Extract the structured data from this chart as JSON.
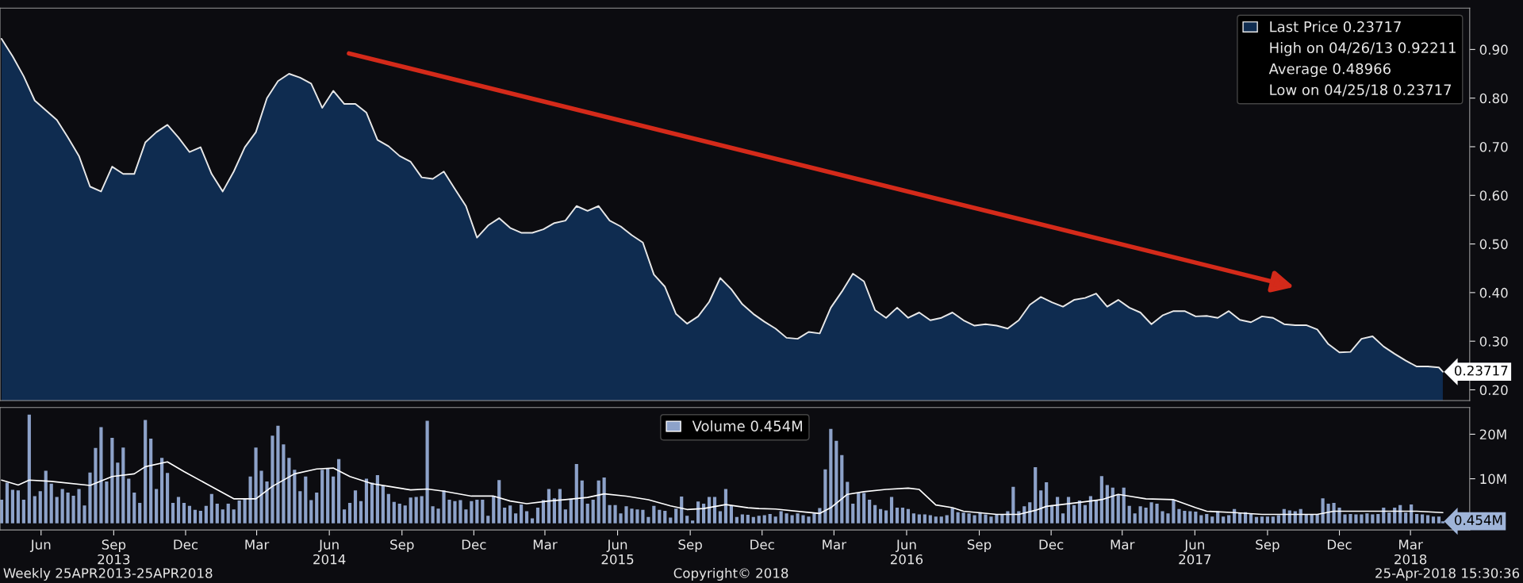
{
  "chart_data": [
    {
      "type": "area",
      "tick_labels": "y",
      "legend": "top right",
      "xlim": [
        "2013-04-24",
        "2018-05-29"
      ],
      "ylim": [
        0.178,
        0.985
      ],
      "yticks": [
        {
          "value": 0.2,
          "label": "0.20"
        },
        {
          "value": 0.3,
          "label": "0.30"
        },
        {
          "value": 0.4,
          "label": "0.40"
        },
        {
          "value": 0.5,
          "label": "0.50"
        },
        {
          "value": 0.6,
          "label": "0.60"
        },
        {
          "value": 0.7,
          "label": "0.70"
        },
        {
          "value": 0.8,
          "label": "0.80"
        },
        {
          "value": 0.9,
          "label": "0.90"
        }
      ],
      "x": [
        "2013-04-26",
        "2013-05-10",
        "2013-05-24",
        "2013-06-07",
        "2013-06-21",
        "2013-07-05",
        "2013-07-19",
        "2013-08-02",
        "2013-08-16",
        "2013-08-30",
        "2013-09-13",
        "2013-09-27",
        "2013-10-11",
        "2013-10-25",
        "2013-11-08",
        "2013-11-22",
        "2013-12-06",
        "2013-12-20",
        "2014-01-03",
        "2014-01-17",
        "2014-01-31",
        "2014-02-14",
        "2014-02-28",
        "2014-03-14",
        "2014-03-28",
        "2014-04-11",
        "2014-04-25",
        "2014-05-09",
        "2014-05-23",
        "2014-06-06",
        "2014-06-20",
        "2014-07-04",
        "2014-07-18",
        "2014-08-01",
        "2014-08-15",
        "2014-08-29",
        "2014-09-12",
        "2014-09-26",
        "2014-10-10",
        "2014-10-24",
        "2014-11-07",
        "2014-11-21",
        "2014-12-05",
        "2014-12-19",
        "2015-01-02",
        "2015-01-16",
        "2015-01-30",
        "2015-02-13",
        "2015-02-27",
        "2015-03-13",
        "2015-03-27",
        "2015-04-10",
        "2015-04-24",
        "2015-05-08",
        "2015-05-22",
        "2015-06-05",
        "2015-06-19",
        "2015-07-03",
        "2015-07-17",
        "2015-07-31",
        "2015-08-14",
        "2015-08-28",
        "2015-09-11",
        "2015-09-25",
        "2015-10-09",
        "2015-10-23",
        "2015-11-06",
        "2015-11-20",
        "2015-12-04",
        "2015-12-18",
        "2016-01-01",
        "2016-01-15",
        "2016-01-29",
        "2016-02-12",
        "2016-02-26",
        "2016-03-11",
        "2016-03-25",
        "2016-04-08",
        "2016-04-22",
        "2016-05-06",
        "2016-05-20",
        "2016-06-03",
        "2016-06-17",
        "2016-07-01",
        "2016-07-15",
        "2016-07-29",
        "2016-08-12",
        "2016-08-26",
        "2016-09-09",
        "2016-09-23",
        "2016-10-07",
        "2016-10-21",
        "2016-11-04",
        "2016-11-18",
        "2016-12-02",
        "2016-12-16",
        "2016-12-30",
        "2017-01-13",
        "2017-01-27",
        "2017-02-10",
        "2017-02-24",
        "2017-03-10",
        "2017-03-24",
        "2017-04-07",
        "2017-04-21",
        "2017-05-05",
        "2017-05-19",
        "2017-06-02",
        "2017-06-16",
        "2017-06-30",
        "2017-07-14",
        "2017-07-28",
        "2017-08-11",
        "2017-08-25",
        "2017-09-08",
        "2017-09-22",
        "2017-10-06",
        "2017-10-20",
        "2017-11-03",
        "2017-11-17",
        "2017-12-01",
        "2017-12-15",
        "2017-12-29",
        "2018-01-12",
        "2018-01-26",
        "2018-02-09",
        "2018-02-23",
        "2018-03-09",
        "2018-03-23",
        "2018-04-06",
        "2018-04-20",
        "2018-04-25"
      ],
      "series": [
        {
          "name": "Last Price 0.23717",
          "color": "#0f2c50",
          "values": [
            0.922,
            0.886,
            0.845,
            0.795,
            0.775,
            0.755,
            0.719,
            0.681,
            0.618,
            0.608,
            0.659,
            0.644,
            0.644,
            0.709,
            0.73,
            0.745,
            0.719,
            0.689,
            0.699,
            0.644,
            0.608,
            0.649,
            0.699,
            0.73,
            0.8,
            0.835,
            0.85,
            0.842,
            0.83,
            0.78,
            0.815,
            0.788,
            0.788,
            0.77,
            0.714,
            0.701,
            0.681,
            0.669,
            0.637,
            0.634,
            0.649,
            0.613,
            0.578,
            0.513,
            0.538,
            0.553,
            0.533,
            0.523,
            0.523,
            0.53,
            0.543,
            0.548,
            0.578,
            0.568,
            0.578,
            0.548,
            0.536,
            0.518,
            0.503,
            0.437,
            0.412,
            0.356,
            0.336,
            0.351,
            0.381,
            0.43,
            0.407,
            0.376,
            0.356,
            0.34,
            0.326,
            0.307,
            0.305,
            0.319,
            0.316,
            0.369,
            0.402,
            0.439,
            0.423,
            0.364,
            0.348,
            0.369,
            0.348,
            0.359,
            0.343,
            0.348,
            0.359,
            0.343,
            0.332,
            0.335,
            0.332,
            0.326,
            0.343,
            0.375,
            0.391,
            0.38,
            0.371,
            0.385,
            0.389,
            0.398,
            0.371,
            0.385,
            0.369,
            0.359,
            0.335,
            0.353,
            0.362,
            0.362,
            0.351,
            0.352,
            0.348,
            0.362,
            0.344,
            0.339,
            0.351,
            0.348,
            0.335,
            0.333,
            0.333,
            0.324,
            0.294,
            0.277,
            0.278,
            0.305,
            0.31,
            0.289,
            0.274,
            0.26,
            0.248,
            0.248,
            0.246,
            0.23717
          ]
        }
      ],
      "annotations": [
        "High on 04/26/13 0.92211",
        "Average 0.48966",
        "Low on 04/25/18 0.23717",
        {
          "text": "0.23717",
          "x": "2018-04-25",
          "y": 0.23717
        }
      ]
    },
    {
      "type": "bar",
      "legend": "top",
      "xlim": [
        "2013-04-24",
        "2018-05-29"
      ],
      "ylim": [
        -1.5,
        26
      ],
      "yticks": [
        {
          "value": 10,
          "label": "10M"
        },
        {
          "value": 20,
          "label": "20M"
        }
      ],
      "xticks": [
        {
          "value": "2013-06-15",
          "label": "Jun"
        },
        {
          "value": "2013-09-15",
          "label": "Sep\n2013"
        },
        {
          "value": "2013-12-15",
          "label": "Dec"
        },
        {
          "value": "2014-03-15",
          "label": "Mar"
        },
        {
          "value": "2014-06-15",
          "label": "Jun\n2014"
        },
        {
          "value": "2014-09-15",
          "label": "Sep"
        },
        {
          "value": "2014-12-15",
          "label": "Dec"
        },
        {
          "value": "2015-03-15",
          "label": "Mar"
        },
        {
          "value": "2015-06-15",
          "label": "Jun\n2015"
        },
        {
          "value": "2015-09-15",
          "label": "Sep"
        },
        {
          "value": "2015-12-15",
          "label": "Dec"
        },
        {
          "value": "2016-03-15",
          "label": "Mar"
        },
        {
          "value": "2016-06-15",
          "label": "Jun\n2016"
        },
        {
          "value": "2016-09-15",
          "label": "Sep"
        },
        {
          "value": "2016-12-15",
          "label": "Dec"
        },
        {
          "value": "2017-03-15",
          "label": "Mar"
        },
        {
          "value": "2017-06-15",
          "label": "Jun\n2017"
        },
        {
          "value": "2017-09-15",
          "label": "Sep"
        },
        {
          "value": "2017-12-15",
          "label": "Dec"
        },
        {
          "value": "2018-03-15",
          "label": "Mar\n2018"
        }
      ],
      "x": [
        "2013-04-26",
        "2013-05-03",
        "2013-05-10",
        "2013-05-17",
        "2013-05-24",
        "2013-05-31",
        "2013-06-07",
        "2013-06-14",
        "2013-06-21",
        "2013-06-28",
        "2013-07-05",
        "2013-07-12",
        "2013-07-19",
        "2013-07-26",
        "2013-08-02",
        "2013-08-09",
        "2013-08-16",
        "2013-08-23",
        "2013-08-30",
        "2013-09-06",
        "2013-09-13",
        "2013-09-20",
        "2013-09-27",
        "2013-10-04",
        "2013-10-11",
        "2013-10-18",
        "2013-10-25",
        "2013-11-01",
        "2013-11-08",
        "2013-11-15",
        "2013-11-22",
        "2013-11-29",
        "2013-12-06",
        "2013-12-13",
        "2013-12-20",
        "2013-12-27",
        "2014-01-03",
        "2014-01-10",
        "2014-01-17",
        "2014-01-24",
        "2014-01-31",
        "2014-02-07",
        "2014-02-14",
        "2014-02-21",
        "2014-02-28",
        "2014-03-07",
        "2014-03-14",
        "2014-03-21",
        "2014-03-28",
        "2014-04-04",
        "2014-04-11",
        "2014-04-18",
        "2014-04-25",
        "2014-05-02",
        "2014-05-09",
        "2014-05-16",
        "2014-05-23",
        "2014-05-30",
        "2014-06-06",
        "2014-06-13",
        "2014-06-20",
        "2014-06-27",
        "2014-07-04",
        "2014-07-11",
        "2014-07-18",
        "2014-07-25",
        "2014-08-01",
        "2014-08-08",
        "2014-08-15",
        "2014-08-22",
        "2014-08-29",
        "2014-09-05",
        "2014-09-12",
        "2014-09-19",
        "2014-09-26",
        "2014-10-03",
        "2014-10-10",
        "2014-10-17",
        "2014-10-24",
        "2014-10-31",
        "2014-11-07",
        "2014-11-14",
        "2014-11-21",
        "2014-11-28",
        "2014-12-05",
        "2014-12-12",
        "2014-12-19",
        "2014-12-26",
        "2015-01-02",
        "2015-01-09",
        "2015-01-16",
        "2015-01-23",
        "2015-01-30",
        "2015-02-06",
        "2015-02-13",
        "2015-02-20",
        "2015-02-27",
        "2015-03-06",
        "2015-03-13",
        "2015-03-20",
        "2015-03-27",
        "2015-04-03",
        "2015-04-10",
        "2015-04-17",
        "2015-04-24",
        "2015-05-01",
        "2015-05-08",
        "2015-05-15",
        "2015-05-22",
        "2015-05-29",
        "2015-06-05",
        "2015-06-12",
        "2015-06-19",
        "2015-06-26",
        "2015-07-03",
        "2015-07-10",
        "2015-07-17",
        "2015-07-24",
        "2015-07-31",
        "2015-08-07",
        "2015-08-14",
        "2015-08-21",
        "2015-08-28",
        "2015-09-04",
        "2015-09-11",
        "2015-09-18",
        "2015-09-25",
        "2015-10-02",
        "2015-10-09",
        "2015-10-16",
        "2015-10-23",
        "2015-10-30",
        "2015-11-06",
        "2015-11-13",
        "2015-11-20",
        "2015-11-27",
        "2015-12-04",
        "2015-12-11",
        "2015-12-18",
        "2015-12-25",
        "2016-01-01",
        "2016-01-08",
        "2016-01-15",
        "2016-01-22",
        "2016-01-29",
        "2016-02-05",
        "2016-02-12",
        "2016-02-19",
        "2016-02-26",
        "2016-03-04",
        "2016-03-11",
        "2016-03-18",
        "2016-03-25",
        "2016-04-01",
        "2016-04-08",
        "2016-04-15",
        "2016-04-22",
        "2016-04-29",
        "2016-05-06",
        "2016-05-13",
        "2016-05-20",
        "2016-05-27",
        "2016-06-03",
        "2016-06-10",
        "2016-06-17",
        "2016-06-24",
        "2016-07-01",
        "2016-07-08",
        "2016-07-15",
        "2016-07-22",
        "2016-07-29",
        "2016-08-05",
        "2016-08-12",
        "2016-08-19",
        "2016-08-26",
        "2016-09-02",
        "2016-09-09",
        "2016-09-16",
        "2016-09-23",
        "2016-09-30",
        "2016-10-07",
        "2016-10-14",
        "2016-10-21",
        "2016-10-28",
        "2016-11-04",
        "2016-11-11",
        "2016-11-18",
        "2016-11-25",
        "2016-12-02",
        "2016-12-09",
        "2016-12-16",
        "2016-12-23",
        "2016-12-30",
        "2017-01-06",
        "2017-01-13",
        "2017-01-20",
        "2017-01-27",
        "2017-02-03",
        "2017-02-10",
        "2017-02-17",
        "2017-02-24",
        "2017-03-03",
        "2017-03-10",
        "2017-03-17",
        "2017-03-24",
        "2017-03-31",
        "2017-04-07",
        "2017-04-14",
        "2017-04-21",
        "2017-04-28",
        "2017-05-05",
        "2017-05-12",
        "2017-05-19",
        "2017-05-26",
        "2017-06-02",
        "2017-06-09",
        "2017-06-16",
        "2017-06-23",
        "2017-06-30",
        "2017-07-07",
        "2017-07-14",
        "2017-07-21",
        "2017-07-28",
        "2017-08-04",
        "2017-08-11",
        "2017-08-18",
        "2017-08-25",
        "2017-09-01",
        "2017-09-08",
        "2017-09-15",
        "2017-09-22",
        "2017-09-29",
        "2017-10-06",
        "2017-10-13",
        "2017-10-20",
        "2017-10-27",
        "2017-11-03",
        "2017-11-10",
        "2017-11-17",
        "2017-11-24",
        "2017-12-01",
        "2017-12-08",
        "2017-12-15",
        "2017-12-22",
        "2017-12-29",
        "2018-01-05",
        "2018-01-12",
        "2018-01-19",
        "2018-01-26",
        "2018-02-02",
        "2018-02-09",
        "2018-02-16",
        "2018-02-23",
        "2018-03-02",
        "2018-03-09",
        "2018-03-16",
        "2018-03-23",
        "2018-03-30",
        "2018-04-06",
        "2018-04-13",
        "2018-04-20",
        "2018-04-25"
      ],
      "series": [
        {
          "name": "Volume 0.454M",
          "color": "#8da2c9",
          "values": [
            5.3,
            9.1,
            7.5,
            7.4,
            5.3,
            24.4,
            6.1,
            7.2,
            11.8,
            8.9,
            5.9,
            7.7,
            6.9,
            6.2,
            7.7,
            4.0,
            11.4,
            16.9,
            21.6,
            9.4,
            19.2,
            13.6,
            17.0,
            10.0,
            6.9,
            4.6,
            23.2,
            19.0,
            7.7,
            14.7,
            11.3,
            4.6,
            5.9,
            4.6,
            3.9,
            3.0,
            2.8,
            3.9,
            6.6,
            4.4,
            3.1,
            4.4,
            3.1,
            5.1,
            5.5,
            10.5,
            17.0,
            11.8,
            9.4,
            19.7,
            21.9,
            17.7,
            14.7,
            12.0,
            7.2,
            10.5,
            5.2,
            6.9,
            12.0,
            12.4,
            10.5,
            14.4,
            3.1,
            4.6,
            7.4,
            5.0,
            10.0,
            9.1,
            10.8,
            8.5,
            6.6,
            4.8,
            4.4,
            4.0,
            5.8,
            5.9,
            6.1,
            23.0,
            3.8,
            3.3,
            7.4,
            5.3,
            5.0,
            5.2,
            3.1,
            5.0,
            5.3,
            5.3,
            1.7,
            6.1,
            9.7,
            3.5,
            4.0,
            2.2,
            4.2,
            2.7,
            1.1,
            3.5,
            5.2,
            7.7,
            5.6,
            7.7,
            3.1,
            5.5,
            13.3,
            9.6,
            4.4,
            5.3,
            9.6,
            10.3,
            4.1,
            4.1,
            2.2,
            3.8,
            3.3,
            3.1,
            3.0,
            1.4,
            3.9,
            3.0,
            2.8,
            1.3,
            3.3,
            6.0,
            1.7,
            0.6,
            4.9,
            4.4,
            5.9,
            5.9,
            2.7,
            7.7,
            4.0,
            1.4,
            2.0,
            1.9,
            1.4,
            1.7,
            1.8,
            2.1,
            1.5,
            2.7,
            2.2,
            1.8,
            2.2,
            1.8,
            1.5,
            2.2,
            3.4,
            12.1,
            21.2,
            18.5,
            15.3,
            9.3,
            4.4,
            6.8,
            6.8,
            5.3,
            4.1,
            3.2,
            2.9,
            5.9,
            3.5,
            3.5,
            3.2,
            2.2,
            2.0,
            2.0,
            1.8,
            1.5,
            1.5,
            1.8,
            3.4,
            2.5,
            2.4,
            2.2,
            1.8,
            2.5,
            2.0,
            1.5,
            2.0,
            2.0,
            2.7,
            8.2,
            2.7,
            3.8,
            4.7,
            12.6,
            7.4,
            9.2,
            4.1,
            5.9,
            2.2,
            5.9,
            4.1,
            5.1,
            4.1,
            6.1,
            5.3,
            10.6,
            8.6,
            8.0,
            6.5,
            8.0,
            3.9,
            2.2,
            3.8,
            3.5,
            4.7,
            4.4,
            2.7,
            2.2,
            5.3,
            3.2,
            2.8,
            2.7,
            2.6,
            1.8,
            2.1,
            1.5,
            2.7,
            1.5,
            1.8,
            3.2,
            2.4,
            2.5,
            2.2,
            1.4,
            1.5,
            1.5,
            1.5,
            1.8,
            3.2,
            2.9,
            2.7,
            3.2,
            2.1,
            2.0,
            2.1,
            5.6,
            4.4,
            4.6,
            3.5,
            2.0,
            2.1,
            2.0,
            2.0,
            2.2,
            2.0,
            2.1,
            3.5,
            2.4,
            3.5,
            4.1,
            2.4,
            4.2,
            2.1,
            2.0,
            1.8,
            1.5,
            1.5,
            0.454
          ]
        },
        {
          "type": "line",
          "color": "#ffffff",
          "x": [
            "2013-04-26",
            "2013-05-17",
            "2013-05-31",
            "2013-06-28",
            "2013-08-16",
            "2013-09-13",
            "2013-10-11",
            "2013-10-25",
            "2013-11-22",
            "2013-12-13",
            "2014-01-10",
            "2014-02-14",
            "2014-03-14",
            "2014-04-04",
            "2014-05-02",
            "2014-05-30",
            "2014-06-20",
            "2014-07-11",
            "2014-08-08",
            "2014-08-29",
            "2014-09-26",
            "2014-10-17",
            "2014-11-07",
            "2014-12-12",
            "2015-01-09",
            "2015-01-30",
            "2015-02-20",
            "2015-03-20",
            "2015-04-10",
            "2015-05-08",
            "2015-05-29",
            "2015-06-26",
            "2015-07-24",
            "2015-08-21",
            "2015-09-11",
            "2015-10-02",
            "2015-10-30",
            "2015-11-27",
            "2015-12-11",
            "2016-01-01",
            "2016-02-26",
            "2016-03-11",
            "2016-04-01",
            "2016-04-22",
            "2016-05-20",
            "2016-06-17",
            "2016-07-01",
            "2016-07-22",
            "2016-08-12",
            "2016-08-26",
            "2016-10-07",
            "2016-11-04",
            "2016-11-25",
            "2016-12-09",
            "2017-01-20",
            "2017-02-17",
            "2017-03-10",
            "2017-03-24",
            "2017-04-14",
            "2017-05-19",
            "2017-06-16",
            "2017-06-30",
            "2017-08-04",
            "2017-09-08",
            "2017-10-06",
            "2017-11-17",
            "2017-12-08",
            "2018-01-19",
            "2018-02-16",
            "2018-03-23",
            "2018-04-25"
          ],
          "values": [
            9.7,
            8.6,
            9.7,
            9.4,
            8.5,
            10.5,
            11.1,
            12.7,
            13.8,
            11.6,
            8.9,
            5.5,
            5.5,
            8.3,
            11.1,
            12.2,
            12.4,
            10.5,
            8.9,
            8.3,
            7.5,
            7.7,
            7.2,
            6.1,
            6.1,
            5.0,
            4.4,
            5.0,
            5.3,
            5.8,
            6.6,
            6.1,
            5.3,
            3.9,
            3.1,
            3.3,
            4.2,
            3.5,
            3.3,
            3.2,
            2.2,
            3.5,
            6.5,
            7.1,
            7.6,
            7.9,
            7.6,
            4.1,
            3.5,
            2.7,
            2.0,
            2.0,
            2.9,
            3.8,
            4.7,
            5.3,
            6.5,
            6.1,
            5.5,
            5.3,
            3.5,
            2.7,
            2.4,
            2.0,
            2.0,
            2.0,
            2.7,
            2.7,
            2.7,
            2.7,
            2.4
          ]
        }
      ],
      "annotations": [
        "Weekly 25APR2013-25APR2018",
        "Copyright© 2018",
        "25-Apr-2018 15:30:36",
        {
          "text": "0.454M",
          "x": "2018-04-25",
          "y": 0.454
        }
      ]
    }
  ]
}
